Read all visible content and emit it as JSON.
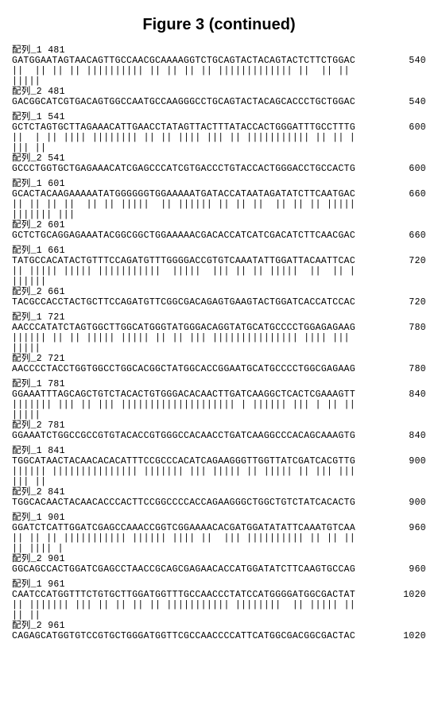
{
  "title": "Figure 3 (continued)",
  "blocks": [
    {
      "label1": "配列_1 481",
      "seq1": "GATGGAATAGTAACAGTTGCCAACGCAAAAGGTCTGCAGTACTACAGTACTCTTCTGGAC",
      "end1": "540",
      "pipes1": "||  || || || |||||||||| || || || || ||||||||||||| ||  || || ",
      "pipes2": "|||||",
      "label2": "配列_2 481",
      "seq2": "GACGGCATCGTGACAGTGGCCAATGCCAAGGGCCTGCAGTACTACAGCACCCTGCTGGAC",
      "end2": "540"
    },
    {
      "label1": "配列_1 541",
      "seq1": "GCTCTAGTGCTTAGAAACATTGAACCTATAGTTACTTTATACCACTGGGATTTGCCTTTG",
      "end1": "600",
      "pipes1": "||  | || |||| |||||||| || || |||| ||| || ||||||||||| || || |",
      "pipes2": "||| ||",
      "label2": "配列_2 541",
      "seq2": "GCCCTGGTGCTGAGAAACATCGAGCCCATCGTGACCCTGTACCACTGGGACCTGCCACTG",
      "end2": "600"
    },
    {
      "label1": "配列_1 601",
      "seq1": "GCACTACAAGAAAAATATGGGGGGTGGAAAAATGATACCATAATAGATATCTTCAATGAC",
      "end1": "660",
      "pipes1": "|| || || ||  || || |||||  || |||||| || || ||  || || || |||||",
      "pipes2": "||||||| |||",
      "label2": "配列_2 601",
      "seq2": "GCTCTGCAGGAGAAATACGGCGGCTGGAAAAACGACACCATCATCGACATCTTCAACGAC",
      "end2": "660"
    },
    {
      "label1": "配列_1 661",
      "seq1": "TATGCCACATACTGTTTCCAGATGTTTGGGGACCGTGTCAAATATTGGATTACAATTCAC",
      "end1": "720",
      "pipes1": "|| ||||| ||||| |||||||||||  |||||  ||| || || |||||  ||  || |",
      "pipes2": "||||||",
      "label2": "配列_2 661",
      "seq2": "TACGCCACCTACTGCTTCCAGATGTTCGGCGACAGAGTGAAGTACTGGATCACCATCCAC",
      "end2": "720"
    },
    {
      "label1": "配列_1 721",
      "seq1": "AACCCATATCTAGTGGCTTGGCATGGGTATGGGACAGGTATGCATGCCCCTGGAGAGAAG",
      "end1": "780",
      "pipes1": "|||||| || || ||||| ||||| || || ||| ||||||||||||||| |||| ||| ",
      "pipes2": "|||||",
      "label2": "配列_2 721",
      "seq2": "AACCCCTACCTGGTGGCCTGGCACGGCTATGGCACCGGAATGCATGCCCCTGGCGAGAAG",
      "end2": "780"
    },
    {
      "label1": "配列_1 781",
      "seq1": "GGAAATTTAGCAGCTGTCTACACTGTGGGACACAACTTGATCAAGGCTCACTCGAAAGTT",
      "end1": "840",
      "pipes1": "||||||| ||| || ||| |||||||||||||||||||| | |||||| ||| | || ||",
      "pipes2": "|||||",
      "label2": "配列_2 781",
      "seq2": "GGAAATCTGGCCGCCGTGTACACCGTGGGCCACAACCTGATCAAGGCCCACAGCAAAGTG",
      "end2": "840"
    },
    {
      "label1": "配列_1 841",
      "seq1": "TGGCATAACTACAACACACATTTCCGCCCACATCAGAAGGGTTGGTTATCGATCACGTTG",
      "end1": "900",
      "pipes1": "|||||| ||||||||||||||| ||||||| ||| ||||| || ||||| || ||| |||",
      "pipes2": "||| ||",
      "label2": "配列_2 841",
      "seq2": "TGGCACAACTACAACACCCACTTCCGGCCCCACCAGAAGGGCTGGCTGTCTATCACACTG",
      "end2": "900"
    },
    {
      "label1": "配列_1 901",
      "seq1": "GGATCTCATTGGATCGAGCCAAACCGGTCGGAAAACACGATGGATATATTCAAATGTCAA",
      "end1": "960",
      "pipes1": "|| || || ||||||||||| |||||| |||| ||  ||| |||||||||| || || ||",
      "pipes2": "|| |||| |",
      "label2": "配列_2 901",
      "seq2": "GGCAGCCACTGGATCGAGCCTAACCGCAGCGAGAACACCATGGATATCTTCAAGTGCCAG",
      "end2": "960"
    },
    {
      "label1": "配列_1 961",
      "seq1": "CAATCCATGGTTTCTGTGCTTGGATGGTTTGCCAACCCTATCCATGGGGATGGCGACTAT",
      "end1": "1020",
      "pipes1": "|| ||||||| ||| || || || || ||||||||||| ||||||||  || ||||| ||",
      "pipes2": "|| ||",
      "label2": "配列_2 961",
      "seq2": "CAGAGCATGGTGTCCGTGCTGGGATGGTTCGCCAACCCCATTCATGGCGACGGCGACTAC",
      "end2": "1020"
    }
  ]
}
